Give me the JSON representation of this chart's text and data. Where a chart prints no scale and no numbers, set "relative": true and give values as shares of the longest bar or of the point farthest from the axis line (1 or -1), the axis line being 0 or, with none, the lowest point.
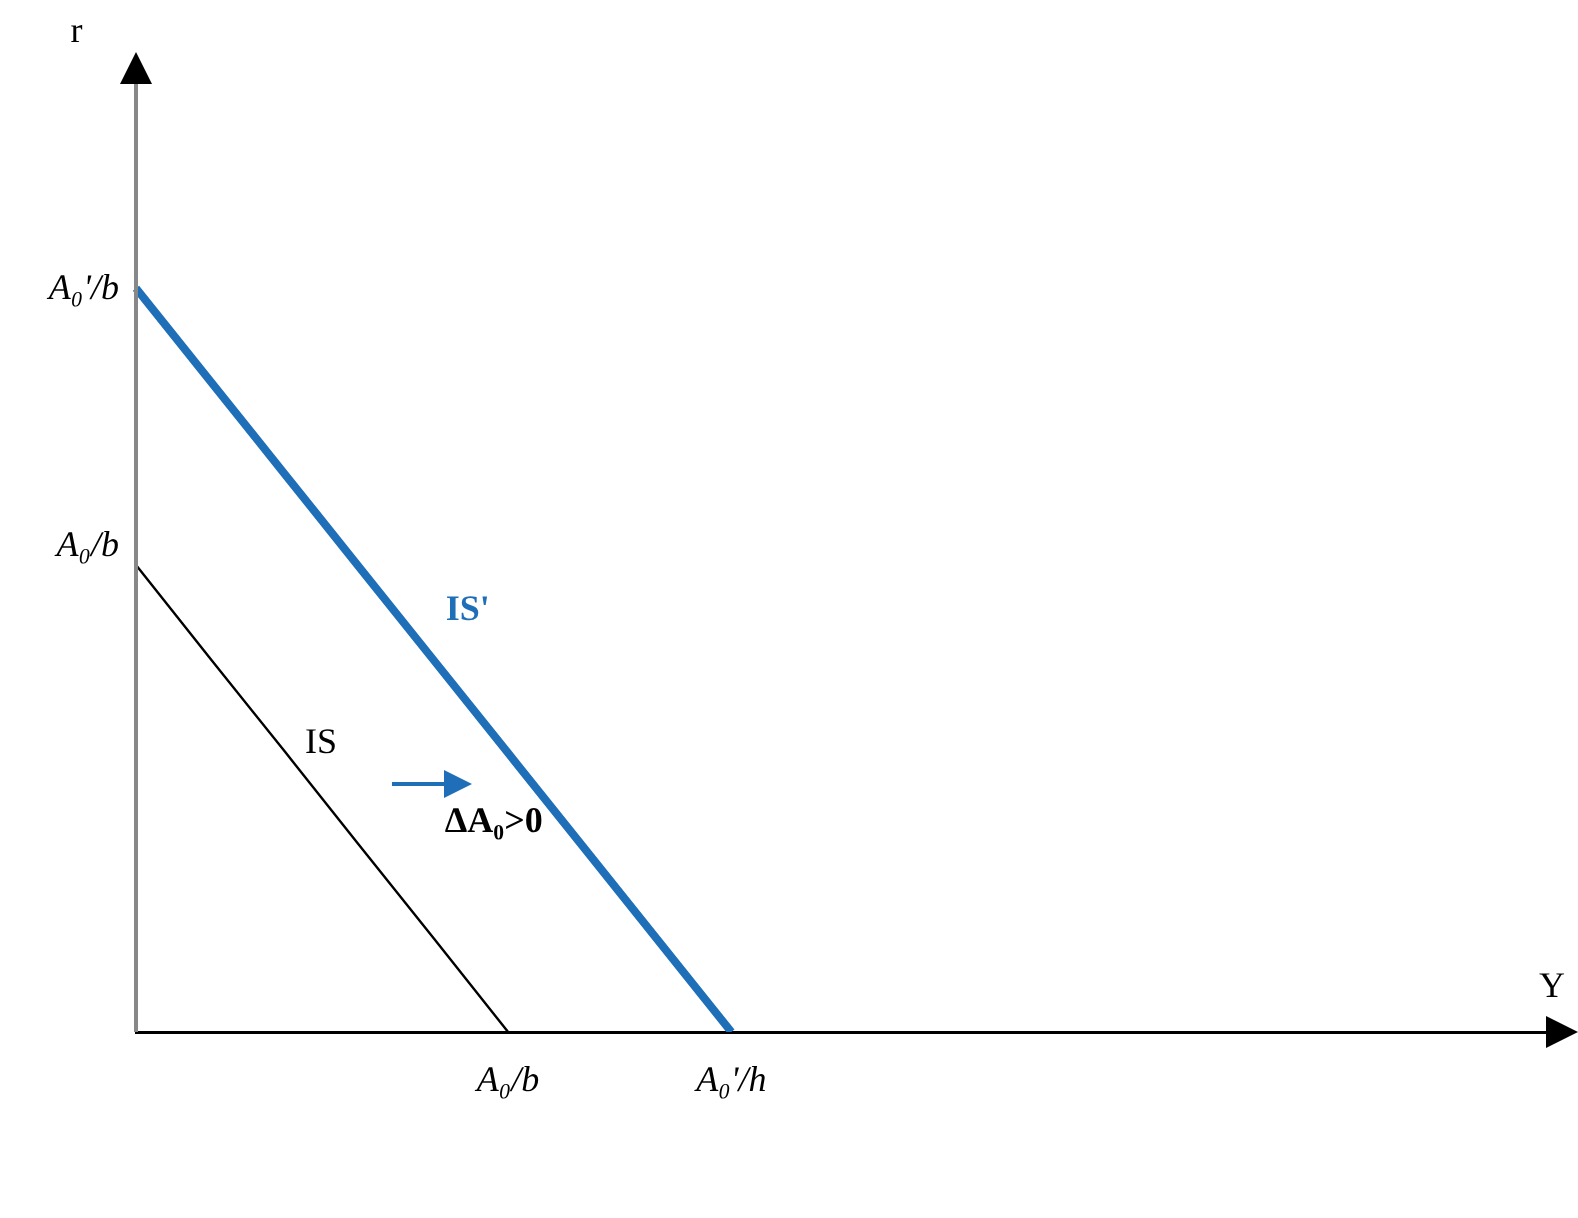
{
  "chart_data": {
    "type": "line",
    "xlabel": "Y",
    "relative": true,
    "categories": [
      null,
      null,
      null,
      null,
      null,
      "A₀/b",
      null,
      null,
      "A₀'/h",
      null,
      null,
      null,
      null,
      null,
      null,
      null,
      null,
      null,
      null,
      null
    ],
    "series": [
      {
        "name": "IS",
        "color": "#000000",
        "values": [
          0.628,
          0.502,
          0.377,
          0.251,
          0.126,
          0,
          null,
          null,
          null,
          null,
          null,
          null,
          null,
          null,
          null,
          null,
          null,
          null,
          null,
          null
        ]
      },
      {
        "name": "IS'",
        "color": "#1f6fb8",
        "values": [
          1,
          0.875,
          0.75,
          0.625,
          0.5,
          0.375,
          0.25,
          0.125,
          0,
          null,
          null,
          null,
          null,
          null,
          null,
          null,
          null,
          null,
          null,
          null
        ]
      }
    ],
    "annotations": [
      "ΔA₀>0",
      "A₀/b",
      "A₀'/b",
      "r"
    ],
    "grid": false,
    "legend": false,
    "marker": "none",
    "line_style": "solid"
  }
}
